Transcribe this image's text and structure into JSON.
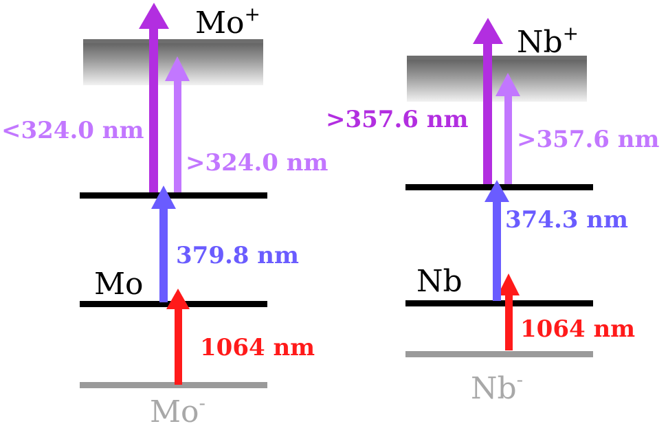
{
  "colors": {
    "bound_level": "#000000",
    "anion_level": "#9a9a9a",
    "continuum_top": "#6e6e6e",
    "red": "#ff1a1a",
    "blue": "#6a5cff",
    "light_purple": "#c277ff",
    "dark_purple": "#b22ee0",
    "anion_text": "#a8a8a8"
  },
  "mo": {
    "ion_label": "Mo",
    "ion_charge": "+",
    "neutral_label": "Mo",
    "anion_label": "Mo",
    "anion_charge": "-",
    "laser_1064": "1064 nm",
    "excitation": "379.8 nm",
    "above_threshold": ">324.0 nm",
    "below_threshold": "<324.0 nm"
  },
  "nb": {
    "ion_label": "Nb",
    "ion_charge": "+",
    "neutral_label": "Nb",
    "anion_label": "Nb",
    "anion_charge": "-",
    "laser_1064": "1064 nm",
    "excitation": "374.3 nm",
    "ionization_a": ">357.6 nm",
    "ionization_b": ">357.6 nm"
  }
}
